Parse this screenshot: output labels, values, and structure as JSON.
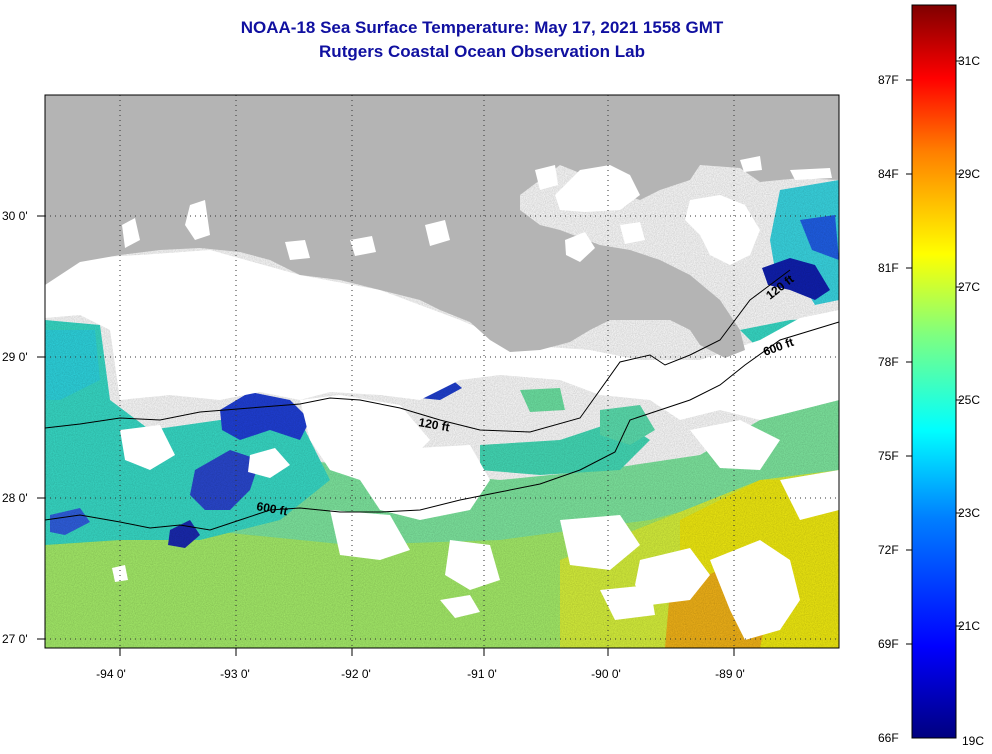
{
  "title": {
    "line1": "NOAA-18 Sea Surface Temperature:  May 17, 2021 1558 GMT",
    "line2": "Rutgers Coastal Ocean Observation Lab"
  },
  "map": {
    "lon_range": [
      -94.5,
      -88.5
    ],
    "lat_range": [
      26.95,
      30.85
    ],
    "lon_ticks": [
      {
        "value": -94,
        "label": "-94 0'"
      },
      {
        "value": -93,
        "label": "-93 0'"
      },
      {
        "value": -92,
        "label": "-92 0'"
      },
      {
        "value": -91,
        "label": "-91 0'"
      },
      {
        "value": -90,
        "label": "-90 0'"
      },
      {
        "value": -89,
        "label": "-89 0'"
      }
    ],
    "lat_ticks": [
      {
        "value": 27,
        "label": "27 0'"
      },
      {
        "value": 28,
        "label": "28 0'"
      },
      {
        "value": 29,
        "label": "29 0'"
      },
      {
        "value": 30,
        "label": "30 0'"
      }
    ],
    "grid": "dotted",
    "land_color": "#b4b4b4",
    "cloud_color": "#ffffff",
    "contours": [
      {
        "label": "120 ft"
      },
      {
        "label": "600 ft"
      }
    ],
    "contour_label_1": "120 ft",
    "contour_label_2": "600 ft",
    "contour_label_3": "120 ft",
    "contour_label_4": "600 ft"
  },
  "colorbar": {
    "min_c": 19,
    "max_c": 32,
    "fahrenheit_labels": [
      "87F",
      "84F",
      "81F",
      "78F",
      "75F",
      "72F",
      "69F",
      "66F"
    ],
    "celsius_labels": [
      "31C",
      "29C",
      "27C",
      "25C",
      "23C",
      "21C",
      "19C"
    ],
    "colors": [
      "#00007f",
      "#0000ff",
      "#007fff",
      "#00ffff",
      "#7fff7f",
      "#ffff00",
      "#ff7f00",
      "#ff0000",
      "#7f0000"
    ]
  }
}
